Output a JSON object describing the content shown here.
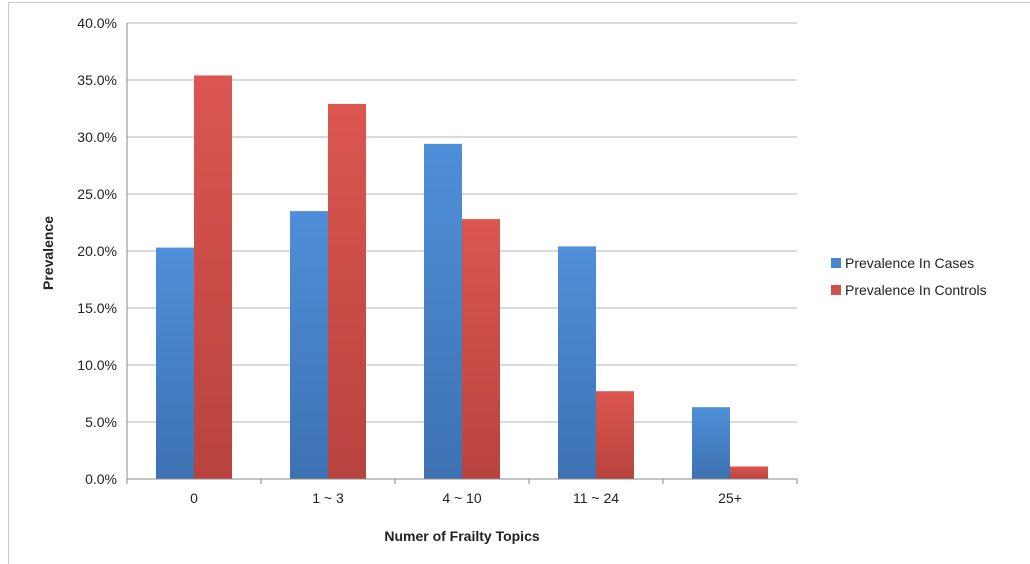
{
  "chart_data": {
    "type": "bar",
    "title": "",
    "xlabel": "Numer of Frailty Topics",
    "ylabel": "Prevalence",
    "categories": [
      "0",
      "1 ~ 3",
      "4 ~ 10",
      "11 ~ 24",
      "25+"
    ],
    "series": [
      {
        "name": "Prevalence In Cases",
        "color": "#4a86cf",
        "values": [
          20.3,
          23.5,
          29.4,
          20.4,
          6.3
        ]
      },
      {
        "name": "Prevalence In Controls",
        "color": "#d2504a",
        "values": [
          35.4,
          32.9,
          22.8,
          7.7,
          1.1
        ]
      }
    ],
    "ylim": [
      0,
      40
    ],
    "yticks": [
      "0.0%",
      "5.0%",
      "10.0%",
      "15.0%",
      "20.0%",
      "25.0%",
      "30.0%",
      "35.0%",
      "40.0%"
    ],
    "grid": true,
    "legend_position": "right"
  }
}
